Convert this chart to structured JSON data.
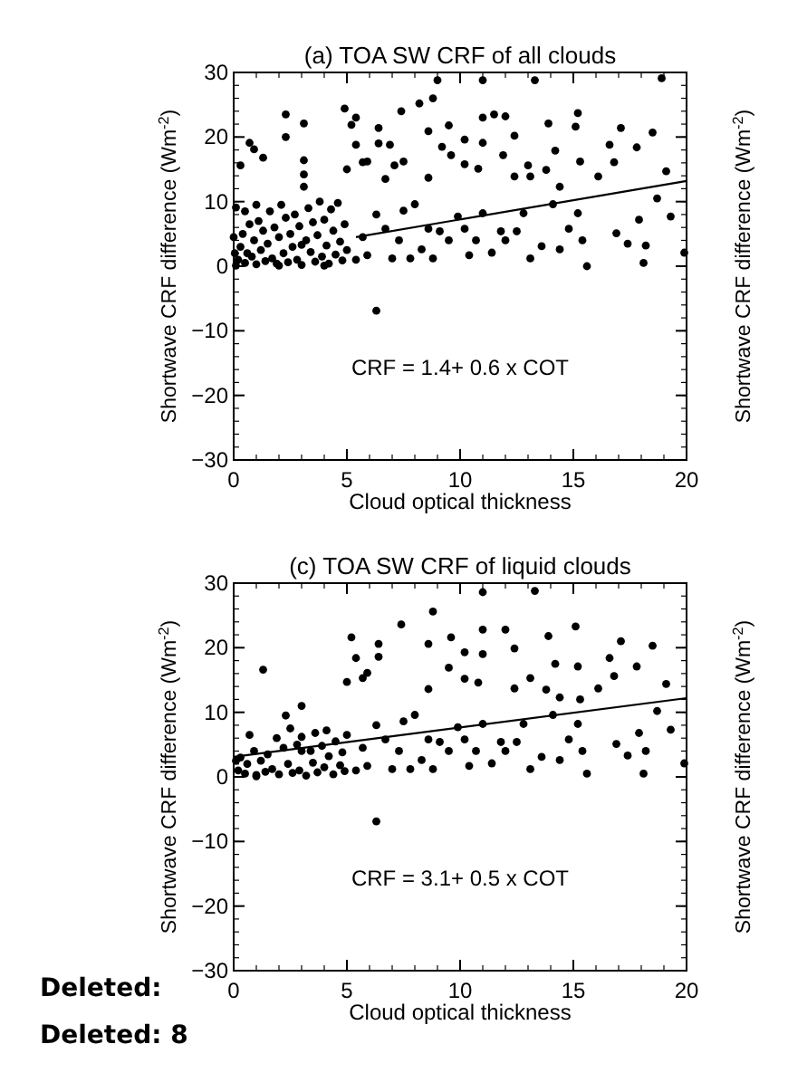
{
  "chart_data": [
    {
      "type": "scatter",
      "title": "(a) TOA SW CRF of all clouds",
      "xlabel": "Cloud optical thickness",
      "ylabel": "Shortwave CRF difference (Wm$^{-2}$)",
      "xlim": [
        0,
        20
      ],
      "ylim": [
        -30,
        30
      ],
      "xticks": [
        0,
        5,
        10,
        15,
        20
      ],
      "yticks": [
        -30,
        -20,
        -10,
        0,
        10,
        20,
        30
      ],
      "annotations": [
        "CRF =  1.4+ 0.6 x COT"
      ],
      "series": [
        {
          "type": "scatter",
          "marker": "circle",
          "color": "#000000",
          "x": [
            0.1,
            0.3,
            0.7,
            0.9,
            1.3,
            2.3,
            2.3,
            3.1,
            3.1,
            3.1,
            3.1,
            4.9,
            5.2,
            5.4,
            5.4,
            5,
            5.7,
            5.9,
            6.4,
            6.4,
            6.9,
            6.7,
            7.1,
            7.4,
            7.5,
            8.2,
            8.6,
            8.6,
            8.8,
            9,
            9.2,
            9.6,
            9.5,
            10.2,
            10.2,
            10.8,
            11,
            11,
            11,
            11.5,
            12,
            11.9,
            12.4,
            12.4,
            13,
            13.1,
            13.3,
            13.8,
            13.9,
            14.2,
            14.4,
            15.1,
            15.2,
            15.3,
            16.1,
            16.6,
            16.8,
            17.1,
            17.8,
            18.5,
            18.9,
            19.1,
            19.3,
            19.9,
            17.9,
            18.2,
            18.1,
            18.7,
            16.9,
            17.4,
            15.6,
            15.4,
            15.2,
            14.8,
            14.4,
            14.1,
            13.6,
            13.1,
            12.8,
            12.5,
            12,
            11.8,
            11.4,
            11,
            10.7,
            10.4,
            10.2,
            9.9,
            9.5,
            9.1,
            8.8,
            8.6,
            8.3,
            8,
            7.8,
            7.5,
            7.3,
            7,
            6.7,
            6.3,
            6.3,
            5.9,
            5.7,
            5.4,
            0.2,
            0.3,
            0.4,
            0.5,
            0.6,
            0.7,
            0.8,
            0.9,
            1,
            1.1,
            1.2,
            1.3,
            1.4,
            1.5,
            1.6,
            1.7,
            1.8,
            1.9,
            2,
            2.1,
            2.2,
            2.3,
            2.4,
            2.5,
            2.6,
            2.7,
            2.8,
            2.9,
            3,
            3.2,
            3.3,
            3.4,
            3.5,
            3.6,
            3.7,
            3.8,
            3.9,
            4,
            4.1,
            4.2,
            4.3,
            4.4,
            4.5,
            4.6,
            4.7,
            4.8,
            4.9,
            5,
            0.1,
            0.5,
            1,
            2,
            3,
            4,
            0,
            0.05
          ],
          "values": [
            9.1,
            15.6,
            19.1,
            18.1,
            16.8,
            23.5,
            20,
            22.1,
            16.4,
            14.2,
            12.3,
            24.4,
            21.9,
            23,
            18.8,
            15,
            16.1,
            16.2,
            21.4,
            19,
            18.8,
            13.5,
            15.6,
            24,
            16.2,
            25.2,
            20.9,
            13.7,
            26,
            28.8,
            18.5,
            17.2,
            21.8,
            19.6,
            15.8,
            15.1,
            28.8,
            23,
            19.1,
            23.5,
            23.2,
            17.2,
            20.2,
            13.9,
            15.6,
            13.9,
            28.8,
            14.9,
            22.1,
            17.9,
            12.3,
            21.6,
            23.7,
            16.2,
            13.9,
            18.8,
            16.1,
            21.4,
            18.4,
            20.7,
            29.1,
            14.7,
            7.7,
            2.1,
            7.2,
            3.2,
            0.5,
            10.5,
            5.1,
            3.5,
            0,
            4,
            8.2,
            5.8,
            2.6,
            9.6,
            3.1,
            1.2,
            8.2,
            5.4,
            4,
            5.4,
            2.1,
            8.2,
            4,
            1.7,
            5.8,
            7.7,
            4,
            5.4,
            1.2,
            5.8,
            2.6,
            9.6,
            1.2,
            8.6,
            4,
            1.2,
            5.8,
            8,
            -6.9,
            1.7,
            4.5,
            1,
            1,
            3,
            5,
            0.5,
            2,
            6.5,
            1.5,
            4,
            0.3,
            7,
            2.5,
            5.5,
            0.8,
            3.5,
            8.5,
            1.2,
            6,
            0.4,
            4.5,
            9.5,
            2,
            7.5,
            0.6,
            5,
            3,
            8,
            1,
            6.2,
            0.2,
            4,
            9,
            2.2,
            6.8,
            0.7,
            4.8,
            10,
            1.5,
            7.2,
            3.2,
            0.4,
            8.8,
            5.5,
            1.8,
            9.8,
            3.8,
            0.9,
            6.5,
            2.5,
            0.1,
            8.5,
            9.5,
            0.1,
            3.3,
            0.1,
            4.5,
            2
          ]
        },
        {
          "type": "line",
          "color": "#000000",
          "x": [
            5.4,
            20
          ],
          "values": [
            4.5,
            13.2
          ]
        }
      ]
    },
    {
      "type": "scatter",
      "title": "(c) TOA SW CRF of liquid clouds",
      "xlabel": "Cloud optical thickness",
      "ylabel": "Shortwave CRF difference (Wm$^{-2}$)",
      "xlim": [
        0,
        20
      ],
      "ylim": [
        -30,
        30
      ],
      "xticks": [
        0,
        5,
        10,
        15,
        20
      ],
      "yticks": [
        -30,
        -20,
        -10,
        0,
        10,
        20,
        30
      ],
      "annotations": [
        "CRF =  3.1+ 0.5 x COT",
        "Deleted:",
        "Deleted: 8"
      ],
      "series": [
        {
          "type": "scatter",
          "marker": "circle",
          "color": "#000000",
          "x": [
            1.3,
            5,
            5.2,
            5.4,
            5.7,
            5.9,
            6.4,
            6.4,
            7.4,
            8.6,
            8.6,
            8.8,
            9.6,
            9.5,
            10.2,
            10.2,
            10.8,
            11,
            11,
            11,
            12,
            12.4,
            12.4,
            13.1,
            13.3,
            13.8,
            13.9,
            14.2,
            14.4,
            15.1,
            15.2,
            15.3,
            16.1,
            16.6,
            16.8,
            17.1,
            17.8,
            18.5,
            19.1,
            19.3,
            19.9,
            17.9,
            18.2,
            18.1,
            18.7,
            16.9,
            17.4,
            15.6,
            15.4,
            15.2,
            14.8,
            14.4,
            14.1,
            13.6,
            13.1,
            12.8,
            12.5,
            12,
            11.8,
            11.4,
            11,
            10.7,
            10.4,
            10.2,
            9.9,
            9.5,
            9.1,
            8.8,
            8.6,
            8.3,
            8,
            7.8,
            7.5,
            7.3,
            7,
            6.7,
            6.3,
            6.3,
            5.9,
            5.7,
            5.4,
            0.2,
            0.3,
            0.5,
            0.6,
            0.7,
            0.9,
            1,
            1.2,
            1.4,
            1.5,
            1.7,
            1.9,
            2,
            2.2,
            2.3,
            2.4,
            2.5,
            2.6,
            2.8,
            2.9,
            3,
            3.2,
            3.4,
            3.5,
            3.6,
            3.7,
            3.9,
            4,
            4.1,
            4.2,
            4.4,
            4.5,
            4.7,
            4.8,
            4.9,
            5,
            0.1,
            1,
            3,
            3
          ],
          "values": [
            16.6,
            14.7,
            21.6,
            18.4,
            15.3,
            16.1,
            20.6,
            18.6,
            23.6,
            20.6,
            13.6,
            25.6,
            21.6,
            16.9,
            19.3,
            15.2,
            14.6,
            28.6,
            22.8,
            19,
            22.8,
            19.9,
            13.7,
            15.3,
            28.8,
            13.5,
            21.8,
            17.5,
            12.3,
            23.3,
            17.1,
            12,
            13.7,
            18.4,
            15.6,
            21,
            17.1,
            20.3,
            14.4,
            7.3,
            2.1,
            6.8,
            4,
            0.5,
            10.2,
            5.1,
            3.3,
            0.5,
            4,
            8.2,
            5.8,
            2.6,
            9.6,
            3.1,
            1.2,
            8.2,
            5.4,
            4,
            5.4,
            2.1,
            8.2,
            4,
            1.7,
            5.8,
            7.7,
            4,
            5.4,
            1.2,
            5.8,
            2.6,
            9.6,
            1.2,
            8.6,
            4,
            1.2,
            5.8,
            8,
            -6.9,
            1.7,
            4.5,
            1,
            1,
            3,
            0.5,
            2,
            6.5,
            4,
            0.3,
            2.5,
            0.8,
            3.5,
            1.2,
            6,
            0.4,
            4.5,
            9.5,
            2,
            7.5,
            0.6,
            5,
            1,
            6.2,
            0.2,
            4,
            2.2,
            6.8,
            0.7,
            4.8,
            1.5,
            7.2,
            3.2,
            0.4,
            5.5,
            1.8,
            3.8,
            0.9,
            6.5,
            2.5,
            0.1,
            4,
            11
          ]
        },
        {
          "type": "line",
          "color": "#000000",
          "x": [
            0,
            20
          ],
          "values": [
            3.1,
            12.2
          ]
        }
      ]
    },
    {
      "type": "other",
      "ylabel": "Shortwave CRF difference (Wm$^{-2}$)"
    },
    {
      "type": "other",
      "ylabel": "Shortwave CRF difference (Wm$^{-2}$)"
    }
  ]
}
